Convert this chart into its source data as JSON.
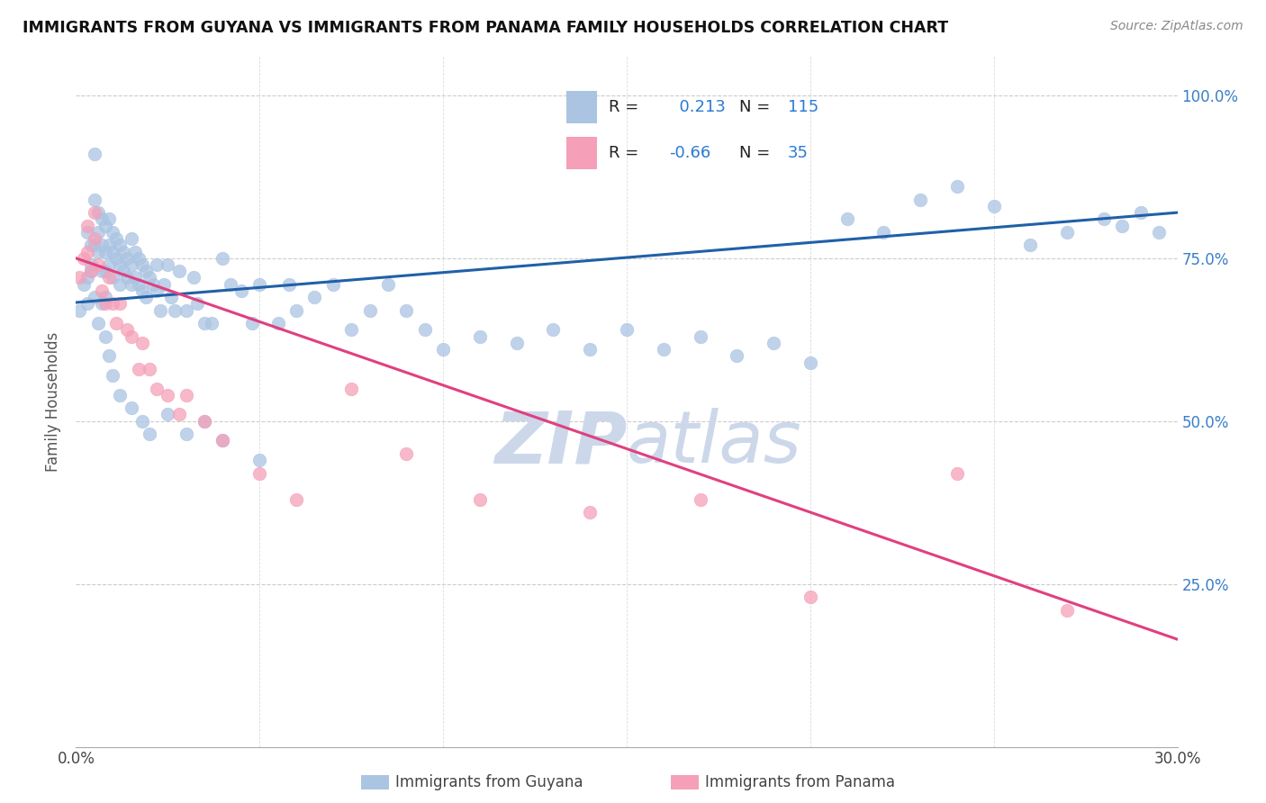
{
  "title": "IMMIGRANTS FROM GUYANA VS IMMIGRANTS FROM PANAMA FAMILY HOUSEHOLDS CORRELATION CHART",
  "source": "Source: ZipAtlas.com",
  "ylabel": "Family Households",
  "xlim": [
    0.0,
    0.3
  ],
  "ylim": [
    0.0,
    1.06
  ],
  "guyana_R": 0.213,
  "guyana_N": 115,
  "panama_R": -0.66,
  "panama_N": 35,
  "guyana_color": "#aac4e2",
  "guyana_line_color": "#2060a8",
  "panama_color": "#f5a0b8",
  "panama_line_color": "#e04080",
  "watermark_color": "#ccd8ea",
  "guyana_x": [
    0.001,
    0.002,
    0.003,
    0.003,
    0.004,
    0.004,
    0.005,
    0.005,
    0.005,
    0.006,
    0.006,
    0.006,
    0.007,
    0.007,
    0.007,
    0.008,
    0.008,
    0.008,
    0.008,
    0.009,
    0.009,
    0.009,
    0.01,
    0.01,
    0.01,
    0.011,
    0.011,
    0.012,
    0.012,
    0.012,
    0.013,
    0.013,
    0.014,
    0.014,
    0.015,
    0.015,
    0.015,
    0.016,
    0.016,
    0.017,
    0.017,
    0.018,
    0.018,
    0.019,
    0.019,
    0.02,
    0.021,
    0.022,
    0.022,
    0.023,
    0.024,
    0.025,
    0.026,
    0.027,
    0.028,
    0.03,
    0.032,
    0.033,
    0.035,
    0.037,
    0.04,
    0.042,
    0.045,
    0.048,
    0.05,
    0.055,
    0.058,
    0.06,
    0.065,
    0.07,
    0.075,
    0.08,
    0.085,
    0.09,
    0.095,
    0.1,
    0.11,
    0.12,
    0.13,
    0.14,
    0.15,
    0.16,
    0.17,
    0.18,
    0.19,
    0.2,
    0.21,
    0.22,
    0.23,
    0.24,
    0.25,
    0.26,
    0.27,
    0.28,
    0.285,
    0.29,
    0.295,
    0.003,
    0.004,
    0.005,
    0.006,
    0.007,
    0.008,
    0.009,
    0.01,
    0.012,
    0.015,
    0.018,
    0.02,
    0.025,
    0.03,
    0.035,
    0.04,
    0.05
  ],
  "guyana_y": [
    0.67,
    0.71,
    0.79,
    0.72,
    0.74,
    0.77,
    0.91,
    0.84,
    0.77,
    0.82,
    0.79,
    0.76,
    0.81,
    0.77,
    0.73,
    0.8,
    0.76,
    0.73,
    0.69,
    0.81,
    0.77,
    0.74,
    0.79,
    0.76,
    0.72,
    0.78,
    0.75,
    0.77,
    0.74,
    0.71,
    0.76,
    0.73,
    0.75,
    0.72,
    0.78,
    0.74,
    0.71,
    0.76,
    0.72,
    0.75,
    0.71,
    0.74,
    0.7,
    0.73,
    0.69,
    0.72,
    0.71,
    0.74,
    0.7,
    0.67,
    0.71,
    0.74,
    0.69,
    0.67,
    0.73,
    0.67,
    0.72,
    0.68,
    0.65,
    0.65,
    0.75,
    0.71,
    0.7,
    0.65,
    0.71,
    0.65,
    0.71,
    0.67,
    0.69,
    0.71,
    0.64,
    0.67,
    0.71,
    0.67,
    0.64,
    0.61,
    0.63,
    0.62,
    0.64,
    0.61,
    0.64,
    0.61,
    0.63,
    0.6,
    0.62,
    0.59,
    0.81,
    0.79,
    0.84,
    0.86,
    0.83,
    0.77,
    0.79,
    0.81,
    0.8,
    0.82,
    0.79,
    0.68,
    0.73,
    0.69,
    0.65,
    0.68,
    0.63,
    0.6,
    0.57,
    0.54,
    0.52,
    0.5,
    0.48,
    0.51,
    0.48,
    0.5,
    0.47,
    0.44
  ],
  "panama_x": [
    0.001,
    0.002,
    0.003,
    0.003,
    0.004,
    0.005,
    0.005,
    0.006,
    0.007,
    0.008,
    0.009,
    0.01,
    0.011,
    0.012,
    0.014,
    0.015,
    0.017,
    0.018,
    0.02,
    0.022,
    0.025,
    0.028,
    0.03,
    0.035,
    0.04,
    0.05,
    0.06,
    0.075,
    0.09,
    0.11,
    0.14,
    0.17,
    0.2,
    0.24,
    0.27
  ],
  "panama_y": [
    0.72,
    0.75,
    0.8,
    0.76,
    0.73,
    0.82,
    0.78,
    0.74,
    0.7,
    0.68,
    0.72,
    0.68,
    0.65,
    0.68,
    0.64,
    0.63,
    0.58,
    0.62,
    0.58,
    0.55,
    0.54,
    0.51,
    0.54,
    0.5,
    0.47,
    0.42,
    0.38,
    0.55,
    0.45,
    0.38,
    0.36,
    0.38,
    0.23,
    0.42,
    0.21
  ],
  "guyana_line_y_at_0": 0.682,
  "guyana_line_y_at_30": 0.82,
  "panama_line_y_at_0": 0.75,
  "panama_line_y_at_30": 0.165
}
